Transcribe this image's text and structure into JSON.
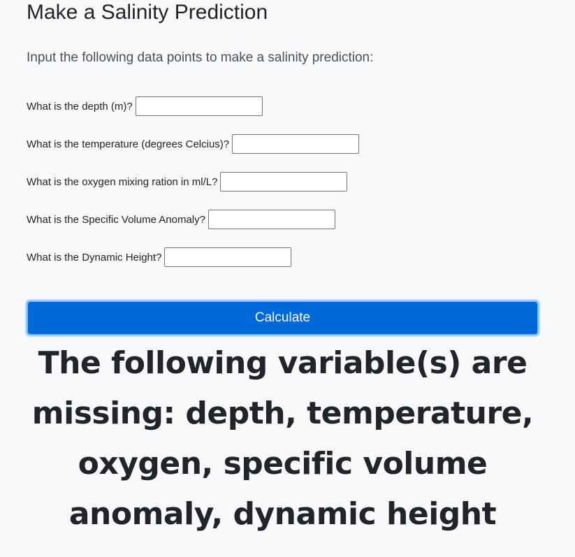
{
  "page": {
    "title": "Make a Salinity Prediction",
    "lead": "Input the following data points to make a salinity prediction:"
  },
  "form": {
    "fields": [
      {
        "label": "What is the depth (m)?",
        "value": "",
        "placeholder": ""
      },
      {
        "label": "What is the temperature (degrees Celcius)?",
        "value": "",
        "placeholder": ""
      },
      {
        "label": "What is the oxygen mixing ration in ml/L?",
        "value": "",
        "placeholder": ""
      },
      {
        "label": "What is the Specific Volume Anomaly?",
        "value": "",
        "placeholder": ""
      },
      {
        "label": "What is the Dynamic Height?",
        "value": "",
        "placeholder": ""
      }
    ],
    "submit_label": "Calculate"
  },
  "result": {
    "message": "The following variable(s) are missing: depth, temperature, oxygen, specific volume anomaly, dynamic height"
  },
  "colors": {
    "background": "#f8f9fa",
    "button": "#0069d9",
    "button_border": "#80bdff",
    "text": "#212529"
  }
}
